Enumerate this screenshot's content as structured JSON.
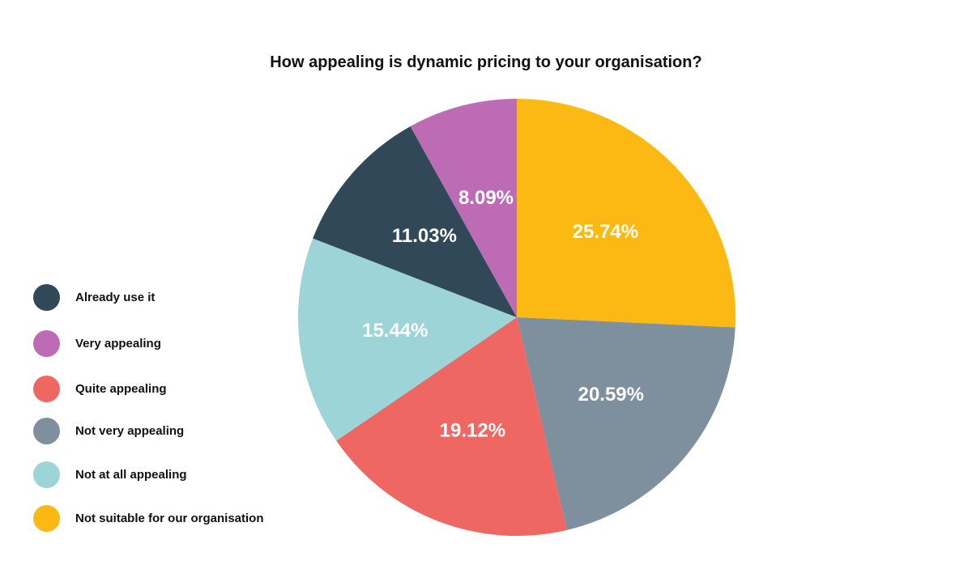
{
  "chart_data": {
    "type": "pie",
    "title": "How appealing is dynamic pricing to your organisation?",
    "slices": [
      {
        "name": "Not suitable for our organisation",
        "value": 25.74,
        "label": "25.74%",
        "color": "#FCB813"
      },
      {
        "name": "Not very appealing",
        "value": 20.59,
        "label": "20.59%",
        "color": "#7E8F9E"
      },
      {
        "name": "Quite appealing",
        "value": 19.12,
        "label": "19.12%",
        "color": "#EE6762"
      },
      {
        "name": "Not at all appealing",
        "value": 15.44,
        "label": "15.44%",
        "color": "#9DD4D7"
      },
      {
        "name": "Already use it",
        "value": 11.03,
        "label": "11.03%",
        "color": "#304858"
      },
      {
        "name": "Very appealing",
        "value": 8.09,
        "label": "8.09%",
        "color": "#BC6BB4"
      }
    ],
    "legend": {
      "placement": "left",
      "items": [
        {
          "label": "Already use it",
          "color": "#304858"
        },
        {
          "label": "Very appealing",
          "color": "#BC6BB4"
        },
        {
          "label": "Quite appealing",
          "color": "#EE6762"
        },
        {
          "label": "Not very appealing",
          "color": "#7E8F9E"
        },
        {
          "label": "Not at all appealing",
          "color": "#9DD4D7"
        },
        {
          "label": "Not suitable for our organisation",
          "color": "#FCB813"
        }
      ]
    }
  }
}
